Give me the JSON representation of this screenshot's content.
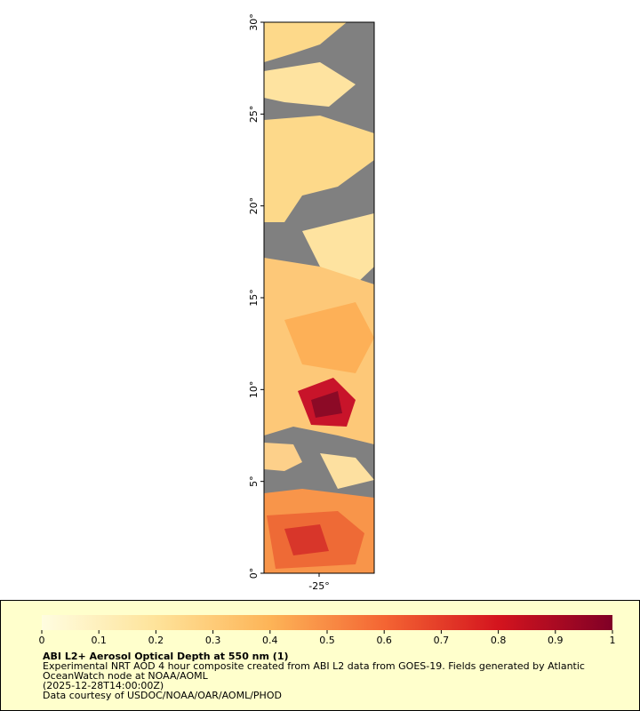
{
  "map": {
    "latlim": [
      0,
      30
    ],
    "lonlim": [
      -27,
      -23
    ],
    "lat_ticks": [
      {
        "value": 0,
        "label": "0°"
      },
      {
        "value": 5,
        "label": "5°"
      },
      {
        "value": 10,
        "label": "10°"
      },
      {
        "value": 15,
        "label": "15°"
      },
      {
        "value": 20,
        "label": "20°"
      },
      {
        "value": 25,
        "label": "25°"
      },
      {
        "value": 30,
        "label": "30°"
      }
    ],
    "lon_ticks": [
      {
        "value": -25,
        "label": "-25°"
      }
    ]
  },
  "colorbar": {
    "range": [
      0,
      1
    ],
    "ticks": [
      0,
      0.1,
      0.2,
      0.3,
      0.4,
      0.5,
      0.6,
      0.7,
      0.8,
      0.9,
      1
    ]
  },
  "caption": {
    "title": "ABI L2+ Aerosol Optical Depth at 550 nm (1)",
    "lines": [
      "Experimental NRT AOD 4 hour composite created from ABI L2 data from GOES-19. Fields generated by Atlantic",
      "OceanWatch node at NOAA/AOML",
      "(2025-12-28T14:00:00Z)",
      "Data courtesy of USDOC/NOAA/OAR/AOML/PHOD"
    ]
  }
}
